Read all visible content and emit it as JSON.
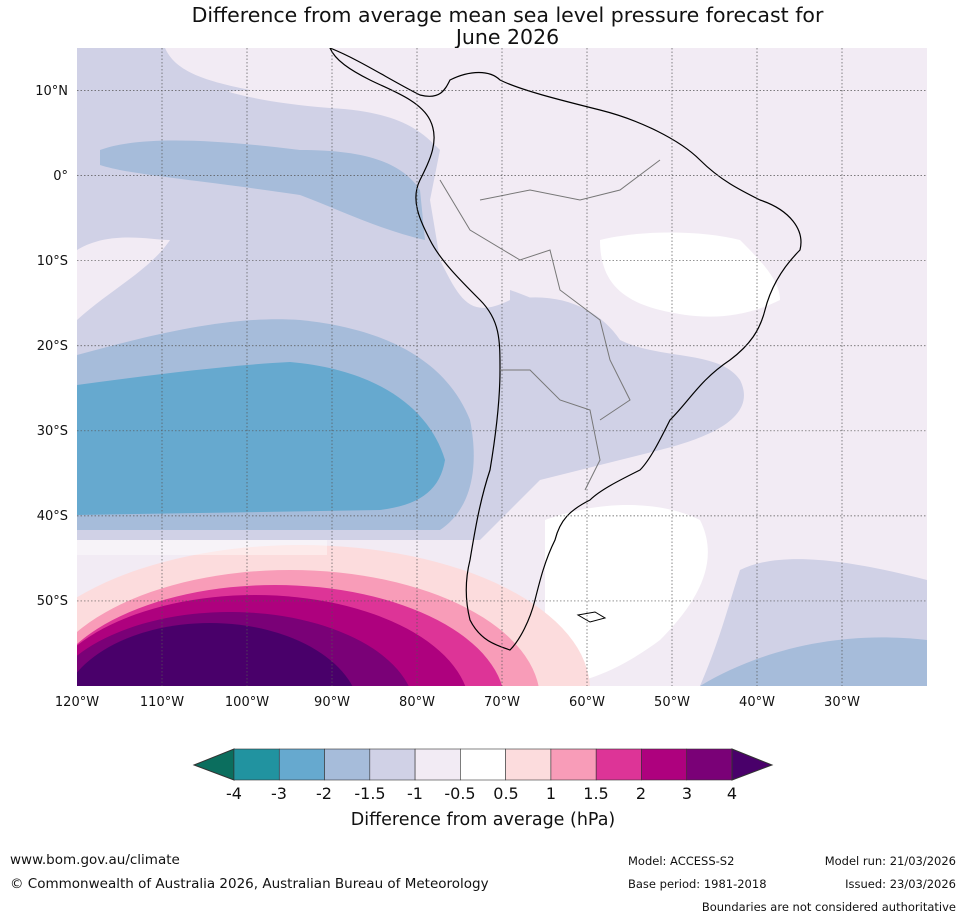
{
  "title": {
    "line1": "Difference from average mean sea level pressure forecast for",
    "line2": "June 2026"
  },
  "map": {
    "lat_labels": [
      "10°N",
      "0°",
      "10°S",
      "20°S",
      "30°S",
      "40°S",
      "50°S"
    ],
    "lon_labels": [
      "120°W",
      "110°W",
      "100°W",
      "90°W",
      "80°W",
      "70°W",
      "60°W",
      "50°W",
      "40°W",
      "30°W"
    ],
    "lat_range": [
      -60,
      15
    ],
    "lon_range": [
      -120,
      -20
    ]
  },
  "legend": {
    "title": "Difference from average (hPa)",
    "tick_labels": [
      "-4",
      "-3",
      "-2",
      "-1.5",
      "-1",
      "-0.5",
      "0.5",
      "1",
      "1.5",
      "2",
      "3",
      "4"
    ],
    "colors": [
      "#0b6e5e",
      "#2193a0",
      "#66a9cf",
      "#a6bcda",
      "#d0d1e6",
      "#f2ebf4",
      "#ffffff",
      "#fcdcdd",
      "#f89cb8",
      "#dd3497",
      "#ae017e",
      "#7a0177",
      "#49006a"
    ]
  },
  "footer": {
    "url": "www.bom.gov.au/climate",
    "copyright": "© Commonwealth of Australia 2026, Australian Bureau of Meteorology",
    "model": "Model: ACCESS-S2",
    "base_period": "Base period: 1981-2018",
    "model_run": "Model run: 21/03/2026",
    "issued": "Issued: 23/03/2026",
    "disclaimer": "Boundaries are not considered authoritative"
  }
}
